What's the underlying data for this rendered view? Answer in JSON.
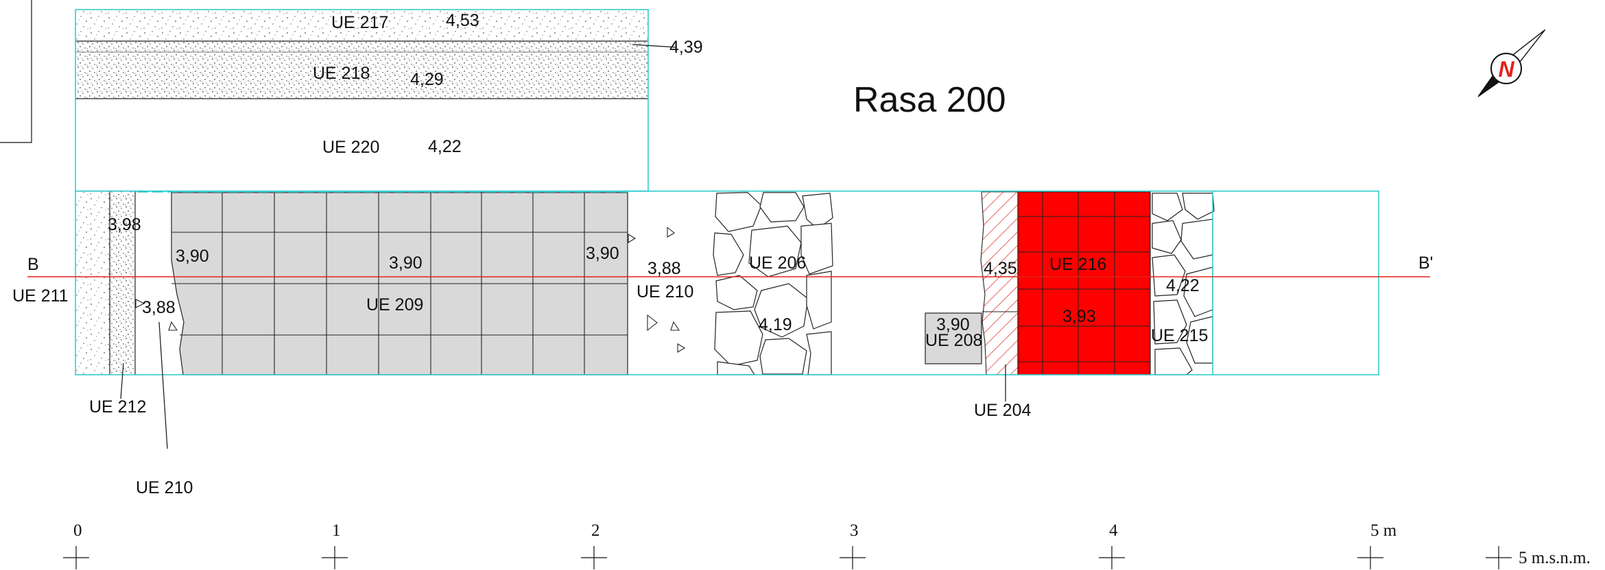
{
  "title": "Rasa 200",
  "colors": {
    "outline": "#33cccc",
    "section_line": "#e2231a",
    "paving": "#d9d9d9",
    "ue216_fill": "#ff0000",
    "hatch": "#e2231a",
    "ink": "#111111"
  },
  "section": {
    "start": "B",
    "end": "B'"
  },
  "units": [
    {
      "id": "UE 217",
      "elevation": "4,53"
    },
    {
      "id": "UE 218",
      "elevation": "4,29"
    },
    {
      "id": "UE 220",
      "elevation": "4,22"
    },
    {
      "id": "UE 209",
      "elevations": [
        "3,90",
        "3,90",
        "3,90"
      ]
    },
    {
      "id": "UE 210",
      "elevations": [
        "3,88",
        "3,88"
      ]
    },
    {
      "id": "UE 206",
      "elevation": "4,19"
    },
    {
      "id": "UE 216",
      "elevation": "3,93"
    },
    {
      "id": "UE 215",
      "elevation": "4,22"
    },
    {
      "id": "UE 208",
      "elevation": "3,90"
    },
    {
      "id": "UE 204",
      "elevation": "4,35"
    },
    {
      "id": "UE 211"
    },
    {
      "id": "UE 212",
      "elevation": "3,98"
    }
  ],
  "labels": {
    "ue217": "UE 217",
    "ue217_elev": "4,53",
    "ue218_boundary_elev": "4,39",
    "ue218": "UE 218",
    "ue218_elev": "4,29",
    "ue220": "UE 220",
    "ue220_elev": "4,22",
    "ue211": "UE 211",
    "ue212": "UE 212",
    "ue212_elev": "3,98",
    "ue210_left_elev": "3,88",
    "ue210_bottom": "UE 210",
    "ue209": "UE 209",
    "ue209_elev_left": "3,90",
    "ue209_elev_mid": "3,90",
    "ue209_elev_right": "3,90",
    "ue210": "UE 210",
    "ue210_elev": "3,88",
    "ue206": "UE 206",
    "ue206_elev": "4,19",
    "ue208": "UE 208",
    "ue208_elev": "3,90",
    "ue204": "UE 204",
    "ue204_elev": "4,35",
    "ue216": "UE 216",
    "ue216_elev": "3,93",
    "ue215": "UE 215",
    "ue215_elev": "4,22"
  },
  "scale_bar": {
    "ticks": [
      "0",
      "1",
      "2",
      "3",
      "4",
      "5 m"
    ],
    "datum": "5 m.s.n.m."
  },
  "icons": {
    "north_arrow": "north-arrow-icon",
    "north_letter": "N"
  }
}
